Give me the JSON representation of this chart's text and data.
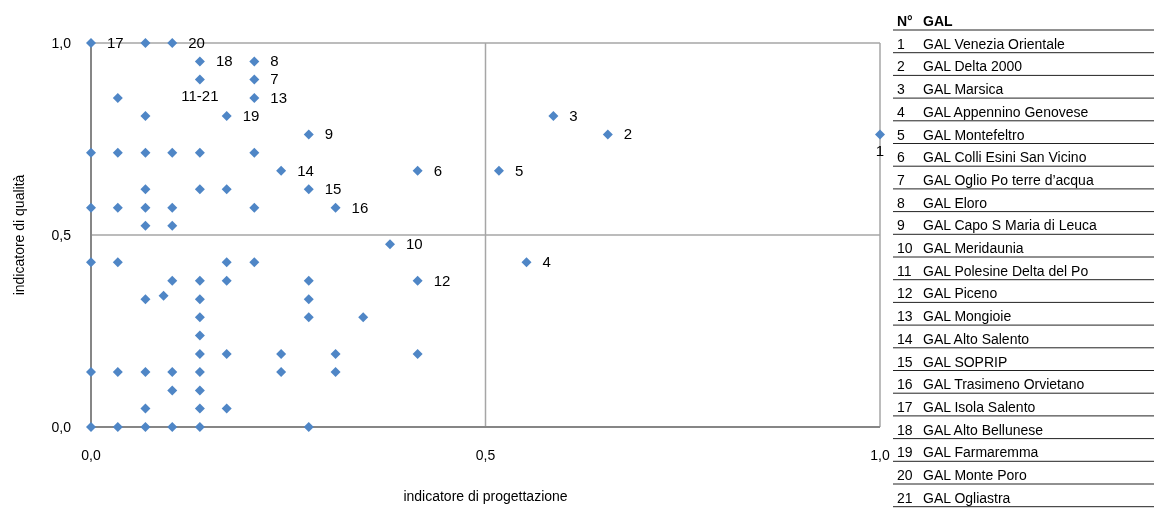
{
  "chart_data": {
    "type": "scatter",
    "xlabel": "indicatore di progettazione",
    "ylabel": "indicatore di qualità",
    "xlim": [
      0,
      1
    ],
    "ylim": [
      0,
      1
    ],
    "xticks": [
      {
        "value": 0,
        "label": "0,0"
      },
      {
        "value": 0.5,
        "label": "0,5"
      },
      {
        "value": 1,
        "label": "1,0"
      }
    ],
    "yticks": [
      {
        "value": 0,
        "label": "0,0"
      },
      {
        "value": 0.5,
        "label": "0,5"
      },
      {
        "value": 1,
        "label": "1,0"
      }
    ],
    "grid": true,
    "marker": "diamond",
    "series": [
      {
        "color": "#4f86c6",
        "x": [
          0,
          0.069,
          0.103,
          0.138,
          0.207,
          0.138,
          0.207,
          0.034,
          0.207,
          0.069,
          0.172,
          0.276,
          0,
          0.034,
          0.069,
          0.103,
          0.138,
          0.207,
          0.241,
          0.069,
          0.138,
          0.172,
          0.276,
          0,
          0.034,
          0.069,
          0.103,
          0.207,
          0.069,
          0.103,
          0.414,
          0.31,
          0.586,
          0.655,
          1,
          0.517,
          0.379,
          0.552,
          0.414,
          0,
          0.034,
          0.172,
          0.207,
          0.103,
          0.138,
          0.172,
          0.276,
          0.069,
          0.092,
          0.138,
          0.276,
          0.138,
          0.276,
          0.345,
          0.138,
          0.138,
          0.172,
          0.241,
          0.31,
          0.414,
          0,
          0.034,
          0.069,
          0.103,
          0.138,
          0.241,
          0.31,
          0.103,
          0.138,
          0.069,
          0.138,
          0.172,
          0,
          0.034,
          0.069,
          0.103,
          0.138,
          0.276
        ],
        "values": [
          1,
          1,
          1,
          0.952,
          0.952,
          0.905,
          0.905,
          0.857,
          0.857,
          0.81,
          0.81,
          0.762,
          0.714,
          0.714,
          0.714,
          0.714,
          0.714,
          0.714,
          0.667,
          0.619,
          0.619,
          0.619,
          0.619,
          0.571,
          0.571,
          0.571,
          0.571,
          0.571,
          0.524,
          0.524,
          0.667,
          0.571,
          0.81,
          0.762,
          0.762,
          0.667,
          0.476,
          0.429,
          0.381,
          0.429,
          0.429,
          0.429,
          0.429,
          0.381,
          0.381,
          0.381,
          0.381,
          0.333,
          0.342,
          0.333,
          0.333,
          0.286,
          0.286,
          0.286,
          0.238,
          0.19,
          0.19,
          0.19,
          0.19,
          0.19,
          0.143,
          0.143,
          0.143,
          0.143,
          0.143,
          0.143,
          0.143,
          0.095,
          0.095,
          0.048,
          0.048,
          0.048,
          0,
          0,
          0,
          0,
          0,
          0
        ]
      }
    ],
    "annotations": [
      {
        "text": "17",
        "x": 0,
        "y": 1
      },
      {
        "text": "20",
        "x": 0.103,
        "y": 1
      },
      {
        "text": "18",
        "x": 0.138,
        "y": 0.952
      },
      {
        "text": "8",
        "x": 0.207,
        "y": 0.952
      },
      {
        "text": "11-21",
        "x": 0.138,
        "y": 0.905
      },
      {
        "text": "7",
        "x": 0.207,
        "y": 0.905
      },
      {
        "text": "13",
        "x": 0.207,
        "y": 0.857
      },
      {
        "text": "19",
        "x": 0.172,
        "y": 0.81
      },
      {
        "text": "9",
        "x": 0.276,
        "y": 0.762
      },
      {
        "text": "14",
        "x": 0.241,
        "y": 0.667
      },
      {
        "text": "15",
        "x": 0.276,
        "y": 0.619
      },
      {
        "text": "16",
        "x": 0.31,
        "y": 0.571
      },
      {
        "text": "6",
        "x": 0.414,
        "y": 0.667
      },
      {
        "text": "3",
        "x": 0.586,
        "y": 0.81
      },
      {
        "text": "2",
        "x": 0.655,
        "y": 0.762
      },
      {
        "text": "1",
        "x": 1,
        "y": 0.762
      },
      {
        "text": "5",
        "x": 0.517,
        "y": 0.667
      },
      {
        "text": "10",
        "x": 0.379,
        "y": 0.476
      },
      {
        "text": "4",
        "x": 0.552,
        "y": 0.429
      },
      {
        "text": "12",
        "x": 0.414,
        "y": 0.381
      },
      "N° GAL",
      "1 GAL Venezia Orientale",
      "2 GAL Delta 2000",
      "3 GAL Marsica",
      "4 GAL Appennino Genovese",
      "5 GAL Montefeltro",
      "6 GAL Colli Esini San Vicino",
      "7 GAL Oglio Po terre d’acqua",
      "8 GAL Eloro",
      "9 GAL Capo S Maria di Leuca",
      "10 GAL Meridaunia",
      "11 GAL Polesine Delta del Po",
      "12 GAL Piceno",
      "13 GAL Mongioie",
      "14 GAL Alto Salento",
      "15 GAL SOPRIP",
      "16 GAL Trasimeno Orvietano",
      "17 GAL Isola Salento",
      "18 GAL Alto Bellunese",
      "19 GAL Farmaremma",
      "20 GAL Monte Poro",
      "21 GAL Ogliastra"
    ]
  }
}
